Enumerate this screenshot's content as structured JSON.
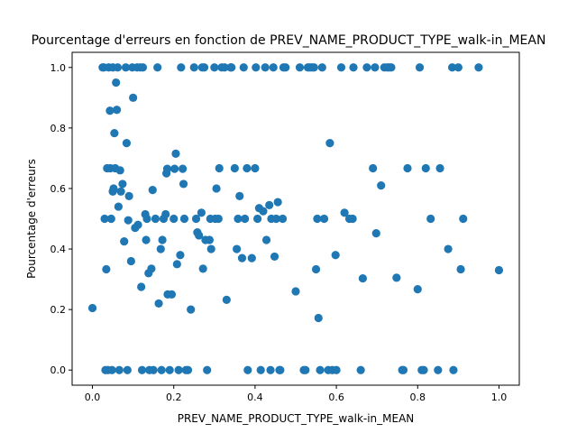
{
  "chart_data": {
    "type": "scatter",
    "title": "Pourcentage d'erreurs en fonction de PREV_NAME_PRODUCT_TYPE_walk-in_MEAN",
    "xlabel": "PREV_NAME_PRODUCT_TYPE_walk-in_MEAN",
    "ylabel": "Pourcentage d'erreurs",
    "xlim": [
      -0.05,
      1.05
    ],
    "ylim": [
      -0.05,
      1.05
    ],
    "xticks": [
      0.0,
      0.2,
      0.4,
      0.6,
      0.8,
      1.0
    ],
    "xtick_labels": [
      "0.0",
      "0.2",
      "0.4",
      "0.6",
      "0.8",
      "1.0"
    ],
    "yticks": [
      0.0,
      0.2,
      0.4,
      0.6,
      0.8,
      1.0
    ],
    "ytick_labels": [
      "0.0",
      "0.2",
      "0.4",
      "0.6",
      "0.8",
      "1.0"
    ],
    "grid": false,
    "marker_color": "#1f77b4",
    "points": [
      [
        0.0,
        0.205
      ],
      [
        0.025,
        1.0
      ],
      [
        0.028,
        1.0
      ],
      [
        0.03,
        0.5
      ],
      [
        0.032,
        0.0
      ],
      [
        0.034,
        0.333
      ],
      [
        0.036,
        0.667
      ],
      [
        0.038,
        0.0
      ],
      [
        0.04,
        1.0
      ],
      [
        0.043,
        0.857
      ],
      [
        0.044,
        0.667
      ],
      [
        0.046,
        0.5
      ],
      [
        0.048,
        0.0
      ],
      [
        0.05,
        0.59
      ],
      [
        0.05,
        1.0
      ],
      [
        0.052,
        0.6
      ],
      [
        0.054,
        0.783
      ],
      [
        0.056,
        0.667
      ],
      [
        0.058,
        0.95
      ],
      [
        0.06,
        0.86
      ],
      [
        0.062,
        1.0
      ],
      [
        0.064,
        0.54
      ],
      [
        0.066,
        0.0
      ],
      [
        0.068,
        0.66
      ],
      [
        0.07,
        0.59
      ],
      [
        0.074,
        0.615
      ],
      [
        0.078,
        0.425
      ],
      [
        0.082,
        1.0
      ],
      [
        0.084,
        0.75
      ],
      [
        0.086,
        0.0
      ],
      [
        0.088,
        0.495
      ],
      [
        0.09,
        0.575
      ],
      [
        0.095,
        0.36
      ],
      [
        0.098,
        1.0
      ],
      [
        0.1,
        0.9
      ],
      [
        0.105,
        0.47
      ],
      [
        0.11,
        1.0
      ],
      [
        0.112,
        0.48
      ],
      [
        0.118,
        1.0
      ],
      [
        0.12,
        0.275
      ],
      [
        0.122,
        0.0
      ],
      [
        0.124,
        1.0
      ],
      [
        0.13,
        0.515
      ],
      [
        0.132,
        0.43
      ],
      [
        0.134,
        0.5
      ],
      [
        0.138,
        0.32
      ],
      [
        0.14,
        0.0
      ],
      [
        0.145,
        0.335
      ],
      [
        0.148,
        0.595
      ],
      [
        0.15,
        0.0
      ],
      [
        0.155,
        0.5
      ],
      [
        0.16,
        1.0
      ],
      [
        0.163,
        0.22
      ],
      [
        0.168,
        0.4
      ],
      [
        0.17,
        0.0
      ],
      [
        0.172,
        0.43
      ],
      [
        0.175,
        0.5
      ],
      [
        0.18,
        0.515
      ],
      [
        0.182,
        0.65
      ],
      [
        0.184,
        0.665
      ],
      [
        0.185,
        0.25
      ],
      [
        0.19,
        0.0
      ],
      [
        0.195,
        0.25
      ],
      [
        0.2,
        0.5
      ],
      [
        0.202,
        0.665
      ],
      [
        0.205,
        0.715
      ],
      [
        0.208,
        0.35
      ],
      [
        0.212,
        0.0
      ],
      [
        0.216,
        0.38
      ],
      [
        0.218,
        1.0
      ],
      [
        0.222,
        0.665
      ],
      [
        0.224,
        0.615
      ],
      [
        0.226,
        0.5
      ],
      [
        0.23,
        0.0
      ],
      [
        0.235,
        0.0
      ],
      [
        0.242,
        0.2
      ],
      [
        0.25,
        1.0
      ],
      [
        0.255,
        0.5
      ],
      [
        0.258,
        0.455
      ],
      [
        0.262,
        0.445
      ],
      [
        0.268,
        0.52
      ],
      [
        0.27,
        1.0
      ],
      [
        0.272,
        0.335
      ],
      [
        0.275,
        1.0
      ],
      [
        0.278,
        0.43
      ],
      [
        0.282,
        0.0
      ],
      [
        0.288,
        0.43
      ],
      [
        0.29,
        0.5
      ],
      [
        0.292,
        0.4
      ],
      [
        0.3,
        1.0
      ],
      [
        0.302,
        0.5
      ],
      [
        0.305,
        0.6
      ],
      [
        0.31,
        0.5
      ],
      [
        0.312,
        0.667
      ],
      [
        0.318,
        1.0
      ],
      [
        0.325,
        1.0
      ],
      [
        0.33,
        0.232
      ],
      [
        0.34,
        1.0
      ],
      [
        0.342,
        1.0
      ],
      [
        0.35,
        0.667
      ],
      [
        0.355,
        0.4
      ],
      [
        0.358,
        0.5
      ],
      [
        0.362,
        0.575
      ],
      [
        0.368,
        0.37
      ],
      [
        0.372,
        1.0
      ],
      [
        0.375,
        0.5
      ],
      [
        0.38,
        0.667
      ],
      [
        0.382,
        0.0
      ],
      [
        0.392,
        0.37
      ],
      [
        0.4,
        0.667
      ],
      [
        0.402,
        1.0
      ],
      [
        0.406,
        0.5
      ],
      [
        0.41,
        0.535
      ],
      [
        0.414,
        0.0
      ],
      [
        0.42,
        0.525
      ],
      [
        0.425,
        1.0
      ],
      [
        0.428,
        0.43
      ],
      [
        0.435,
        0.545
      ],
      [
        0.438,
        0.0
      ],
      [
        0.44,
        0.5
      ],
      [
        0.445,
        1.0
      ],
      [
        0.448,
        0.375
      ],
      [
        0.452,
        0.5
      ],
      [
        0.456,
        0.555
      ],
      [
        0.46,
        0.0
      ],
      [
        0.462,
        0.0
      ],
      [
        0.468,
        0.5
      ],
      [
        0.47,
        1.0
      ],
      [
        0.475,
        1.0
      ],
      [
        0.5,
        0.26
      ],
      [
        0.51,
        1.0
      ],
      [
        0.52,
        0.0
      ],
      [
        0.524,
        0.0
      ],
      [
        0.53,
        1.0
      ],
      [
        0.535,
        1.0
      ],
      [
        0.54,
        1.0
      ],
      [
        0.545,
        1.0
      ],
      [
        0.55,
        0.333
      ],
      [
        0.553,
        0.5
      ],
      [
        0.556,
        0.172
      ],
      [
        0.56,
        0.0
      ],
      [
        0.565,
        1.0
      ],
      [
        0.57,
        0.5
      ],
      [
        0.58,
        0.0
      ],
      [
        0.584,
        0.75
      ],
      [
        0.59,
        0.0
      ],
      [
        0.598,
        0.38
      ],
      [
        0.6,
        0.0
      ],
      [
        0.612,
        1.0
      ],
      [
        0.62,
        0.52
      ],
      [
        0.632,
        0.5
      ],
      [
        0.64,
        0.5
      ],
      [
        0.642,
        1.0
      ],
      [
        0.66,
        0.0
      ],
      [
        0.665,
        0.303
      ],
      [
        0.675,
        1.0
      ],
      [
        0.69,
        0.667
      ],
      [
        0.695,
        1.0
      ],
      [
        0.698,
        0.452
      ],
      [
        0.71,
        0.61
      ],
      [
        0.718,
        1.0
      ],
      [
        0.725,
        1.0
      ],
      [
        0.73,
        1.0
      ],
      [
        0.735,
        1.0
      ],
      [
        0.748,
        0.305
      ],
      [
        0.762,
        0.0
      ],
      [
        0.765,
        0.0
      ],
      [
        0.775,
        0.667
      ],
      [
        0.8,
        0.267
      ],
      [
        0.805,
        1.0
      ],
      [
        0.81,
        0.0
      ],
      [
        0.815,
        0.0
      ],
      [
        0.82,
        0.667
      ],
      [
        0.832,
        0.5
      ],
      [
        0.85,
        0.0
      ],
      [
        0.855,
        0.667
      ],
      [
        0.875,
        0.4
      ],
      [
        0.885,
        1.0
      ],
      [
        0.888,
        0.0
      ],
      [
        0.9,
        1.0
      ],
      [
        0.906,
        0.333
      ],
      [
        0.912,
        0.5
      ],
      [
        0.95,
        1.0
      ],
      [
        1.0,
        0.33
      ]
    ]
  }
}
